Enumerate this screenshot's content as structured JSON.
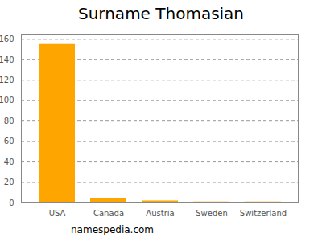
{
  "chart_data": {
    "type": "bar",
    "title": "Surname Thomasian",
    "caption": "namespedia.com",
    "categories": [
      "USA",
      "Canada",
      "Austria",
      "Sweden",
      "Switzerland"
    ],
    "values": [
      155,
      4,
      2,
      1,
      1
    ],
    "color": "#ffa500",
    "ylim": [
      0,
      165
    ],
    "yticks": [
      0,
      20,
      40,
      60,
      80,
      100,
      120,
      140,
      160
    ],
    "grid": true
  }
}
